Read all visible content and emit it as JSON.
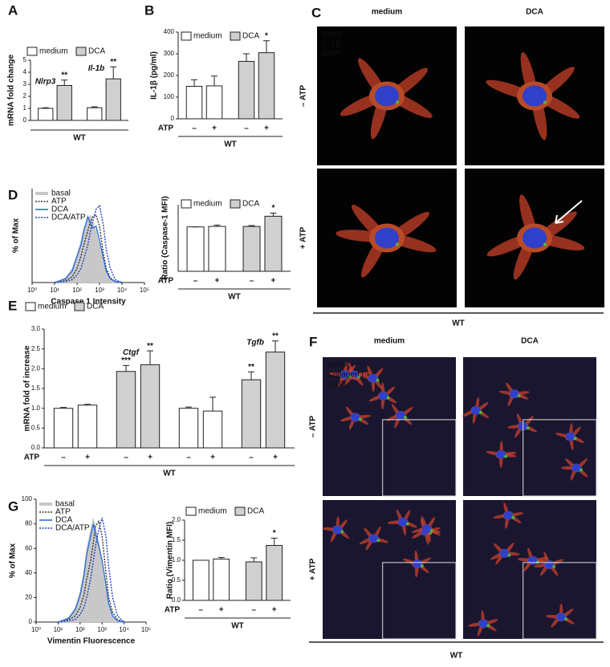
{
  "chart_data": [
    {
      "type": "bar",
      "panel": "A",
      "ylabel": "mRNA fold change",
      "ylim": [
        0,
        5
      ],
      "yticks": [
        0,
        1,
        2,
        3,
        4,
        5
      ],
      "legend": [
        {
          "name": "medium",
          "color": "#ffffff"
        },
        {
          "name": "DCA",
          "color": "#d0d0d0"
        }
      ],
      "groups": [
        "Nlrp3",
        "Il-1b"
      ],
      "values": [
        1.0,
        2.9,
        1.05,
        3.45
      ],
      "errors": [
        0.05,
        0.45,
        0.08,
        1.0
      ],
      "colors": [
        "#ffffff",
        "#d0d0d0",
        "#ffffff",
        "#d0d0d0"
      ],
      "significance": [
        null,
        "**",
        null,
        "**"
      ],
      "xlabel": "WT"
    },
    {
      "type": "bar",
      "panel": "B",
      "ylabel": "IL-1β (pg/ml)",
      "ylim": [
        0,
        400
      ],
      "yticks": [
        0,
        100,
        200,
        300,
        400
      ],
      "legend": [
        {
          "name": "medium",
          "color": "#ffffff"
        },
        {
          "name": "DCA",
          "color": "#d0d0d0"
        }
      ],
      "categories": [
        "–",
        "+",
        "–",
        "+"
      ],
      "category_label": "ATP",
      "values": [
        150,
        152,
        265,
        305
      ],
      "errors": [
        30,
        45,
        35,
        55
      ],
      "colors": [
        "#ffffff",
        "#ffffff",
        "#d0d0d0",
        "#d0d0d0"
      ],
      "significance": [
        null,
        null,
        null,
        "*"
      ],
      "xlabel": "WT"
    },
    {
      "type": "line",
      "panel": "D",
      "xlabel": "Caspase 1 Intensity",
      "ylabel": "% of Max",
      "xscale": "log",
      "xlim": [
        1,
        100000
      ],
      "ylim": [
        0,
        100
      ],
      "xticks": [
        {
          "value": 1,
          "label": "10⁰"
        },
        {
          "value": 10,
          "label": "10¹"
        },
        {
          "value": 100,
          "label": "10²"
        },
        {
          "value": 1000,
          "label": "10³"
        },
        {
          "value": 10000,
          "label": "10⁴"
        },
        {
          "value": 100000,
          "label": "10⁵"
        }
      ],
      "legend_loc": "upper left",
      "x": [
        10,
        30,
        60,
        100,
        150,
        200,
        300,
        400,
        500,
        700,
        1000,
        1500,
        2000,
        3000,
        5000,
        10000
      ],
      "series": [
        {
          "name": "basal",
          "color": "#c8c8c8",
          "style": "filled",
          "values": [
            0,
            5,
            15,
            30,
            45,
            58,
            68,
            72,
            65,
            55,
            40,
            20,
            10,
            4,
            1,
            0
          ]
        },
        {
          "name": "ATP",
          "color": "#333333",
          "style": "dotted",
          "values": [
            0,
            2,
            6,
            15,
            28,
            40,
            55,
            65,
            70,
            72,
            60,
            30,
            15,
            5,
            1,
            0
          ]
        },
        {
          "name": "DCA",
          "color": "#2a6fd6",
          "style": "solid",
          "values": [
            0,
            4,
            12,
            28,
            40,
            55,
            70,
            62,
            58,
            60,
            45,
            25,
            12,
            4,
            1,
            0
          ]
        },
        {
          "name": "DCA/ATP",
          "color": "#2040c0",
          "style": "dotted",
          "values": [
            0,
            1,
            3,
            8,
            15,
            25,
            40,
            55,
            65,
            78,
            82,
            60,
            35,
            15,
            3,
            0
          ]
        }
      ]
    },
    {
      "type": "bar",
      "ylabel": "Ratio (Caspase-1 MFI)",
      "ylim": [
        0,
        1.5
      ],
      "legend": [
        {
          "name": "medium",
          "color": "#ffffff"
        },
        {
          "name": "DCA",
          "color": "#d0d0d0"
        }
      ],
      "categories": [
        "–",
        "+",
        "–",
        "+"
      ],
      "category_label": "ATP",
      "values": [
        1.0,
        1.01,
        1.01,
        1.24
      ],
      "errors": [
        0,
        0.03,
        0.02,
        0.07
      ],
      "colors": [
        "#ffffff",
        "#ffffff",
        "#d0d0d0",
        "#d0d0d0"
      ],
      "significance": [
        null,
        null,
        null,
        "*"
      ],
      "xlabel": "WT"
    },
    {
      "type": "bar",
      "panel": "E",
      "ylabel": "mRNA fold of increase",
      "ylim": [
        0,
        3
      ],
      "yticks": [
        {
          "value": 0,
          "label": "0.0"
        },
        0.5,
        {
          "value": 1,
          "label": "1.0"
        },
        1.5,
        {
          "value": 2,
          "label": "2.0"
        },
        2.5,
        {
          "value": 3,
          "label": "3.0"
        }
      ],
      "legend": [
        {
          "name": "medium",
          "color": "#ffffff"
        },
        {
          "name": "DCA",
          "color": "#d0d0d0"
        }
      ],
      "groups": [
        "Ctgf",
        "Tgfb"
      ],
      "categories": [
        "–",
        "+",
        "–",
        "+",
        "–",
        "+",
        "–",
        "+"
      ],
      "category_label": "ATP",
      "values": [
        1.0,
        1.08,
        1.93,
        2.1,
        1.0,
        0.93,
        1.72,
        2.42
      ],
      "errors": [
        0.02,
        0.02,
        0.15,
        0.35,
        0.03,
        0.35,
        0.2,
        0.28
      ],
      "colors": [
        "#ffffff",
        "#ffffff",
        "#d0d0d0",
        "#d0d0d0",
        "#ffffff",
        "#ffffff",
        "#d0d0d0",
        "#d0d0d0"
      ],
      "significance": [
        null,
        null,
        "***",
        "**",
        null,
        null,
        "**",
        "**"
      ],
      "xlabel": "WT"
    },
    {
      "type": "line",
      "panel": "G",
      "xlabel": "Vimentin Fluorescence",
      "ylabel": "% of Max",
      "xscale": "log",
      "xlim": [
        1,
        100000
      ],
      "ylim": [
        0,
        100
      ],
      "yticks": [
        0,
        20,
        40,
        60,
        80,
        100
      ],
      "xticks": [
        {
          "value": 1,
          "label": "10⁰"
        },
        {
          "value": 10,
          "label": "10¹"
        },
        {
          "value": 100,
          "label": "10²"
        },
        {
          "value": 1000,
          "label": "10³"
        },
        {
          "value": 10000,
          "label": "10⁴"
        },
        {
          "value": 100000,
          "label": "10⁵"
        }
      ],
      "legend_loc": "upper left",
      "x": [
        10,
        30,
        60,
        100,
        150,
        200,
        300,
        400,
        500,
        700,
        1000,
        1500,
        2000,
        3000,
        5000,
        10000
      ],
      "series": [
        {
          "name": "basal",
          "color": "#c8c8c8",
          "style": "filled",
          "values": [
            0,
            4,
            12,
            25,
            42,
            60,
            75,
            85,
            78,
            65,
            45,
            25,
            12,
            5,
            1,
            0
          ]
        },
        {
          "name": "ATP",
          "color": "#333333",
          "style": "dotted",
          "values": [
            0,
            2,
            5,
            12,
            22,
            35,
            50,
            65,
            78,
            82,
            70,
            40,
            20,
            8,
            2,
            0
          ]
        },
        {
          "name": "DCA",
          "color": "#2a6fd6",
          "style": "solid",
          "values": [
            0,
            3,
            10,
            22,
            38,
            55,
            70,
            80,
            72,
            62,
            50,
            30,
            15,
            5,
            1,
            0
          ]
        },
        {
          "name": "DCA/ATP",
          "color": "#2040c0",
          "style": "dotted",
          "values": [
            0,
            1,
            2,
            6,
            12,
            20,
            35,
            50,
            62,
            75,
            85,
            70,
            45,
            20,
            5,
            0
          ]
        }
      ]
    },
    {
      "type": "bar",
      "ylabel": "Ratio (Vimentin MFI)",
      "ylim": [
        0,
        2
      ],
      "yticks": [
        {
          "value": 0,
          "label": "0.0"
        },
        0.5,
        {
          "value": 1,
          "label": "1.0"
        },
        1.5,
        {
          "value": 2,
          "label": "2.0"
        }
      ],
      "legend": [
        {
          "name": "medium",
          "color": "#ffffff"
        },
        {
          "name": "DCA",
          "color": "#d0d0d0"
        }
      ],
      "categories": [
        "–",
        "+",
        "–",
        "+"
      ],
      "category_label": "ATP",
      "values": [
        1.0,
        1.03,
        0.96,
        1.37
      ],
      "errors": [
        0,
        0.04,
        0.1,
        0.18
      ],
      "colors": [
        "#ffffff",
        "#ffffff",
        "#d0d0d0",
        "#d0d0d0"
      ],
      "significance": [
        null,
        null,
        null,
        "*"
      ],
      "xlabel": "WT"
    }
  ],
  "images": [
    {
      "panel": "C",
      "columns": [
        "medium",
        "DCA"
      ],
      "rows": [
        "– ATP",
        "+ ATP"
      ],
      "channels": [
        {
          "name": "Nlrp3",
          "color": "#e83030"
        },
        {
          "name": "IL-1β",
          "color": "#2fd02f"
        },
        {
          "name": "DAPI",
          "color": "#4a6be0"
        }
      ],
      "xlabel": "WT"
    },
    {
      "panel": "F",
      "columns": [
        "medium",
        "DCA"
      ],
      "rows": [
        "– ATP",
        "+ ATP"
      ],
      "channels": [
        {
          "name": "aSMA",
          "color": "#e83030"
        },
        {
          "name": "Collagen I",
          "color": "#2fd02f"
        },
        {
          "name": "DAPI",
          "color": "#4a6be0"
        }
      ],
      "xlabel": "WT"
    }
  ]
}
